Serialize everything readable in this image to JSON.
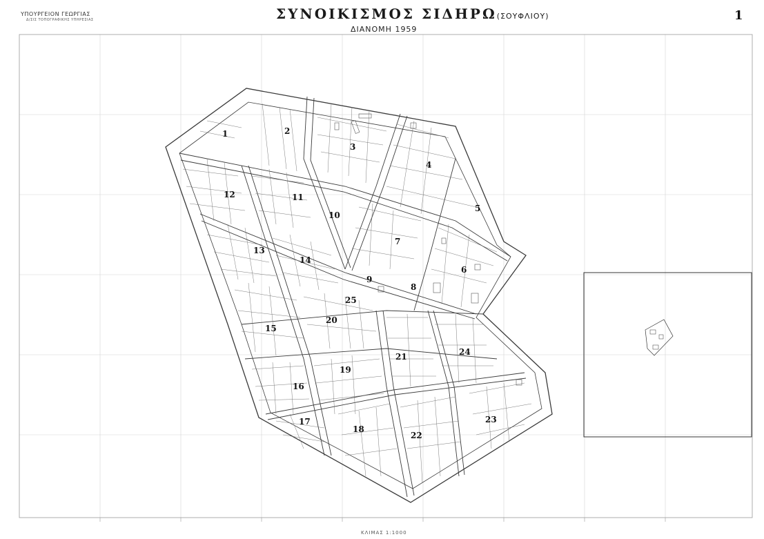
{
  "header": {
    "ministry": "ΥΠΟΥΡΓΕΙΟΝ ΓΕΩΡΓΙΑΣ",
    "service": "Δ/ΣΙΣ ΤΟΠΟΓΡΑΦΙΚΗΣ ΥΠΗΡΕΣΙΑΣ",
    "title_main": "ΣΥΝΟΙΚΙΣΜΟΣ ΣΙΔΗΡΩ",
    "title_paren": "(ΣΟΥΦΛΙΟΥ)",
    "subtitle": "ΔΙΑΝΟΜΗ 1959",
    "sheet_number": "1"
  },
  "footer": {
    "scale": "ΚΛΙΜΑΣ 1:1000"
  },
  "map": {
    "line_color": "#3a3a3a",
    "grid_color": "#d4d4d4",
    "blocks": [
      "1",
      "2",
      "3",
      "4",
      "5",
      "6",
      "7",
      "8",
      "9",
      "10",
      "11",
      "12",
      "13",
      "14",
      "15",
      "16",
      "17",
      "18",
      "19",
      "20",
      "21",
      "22",
      "23",
      "24",
      "25"
    ]
  }
}
